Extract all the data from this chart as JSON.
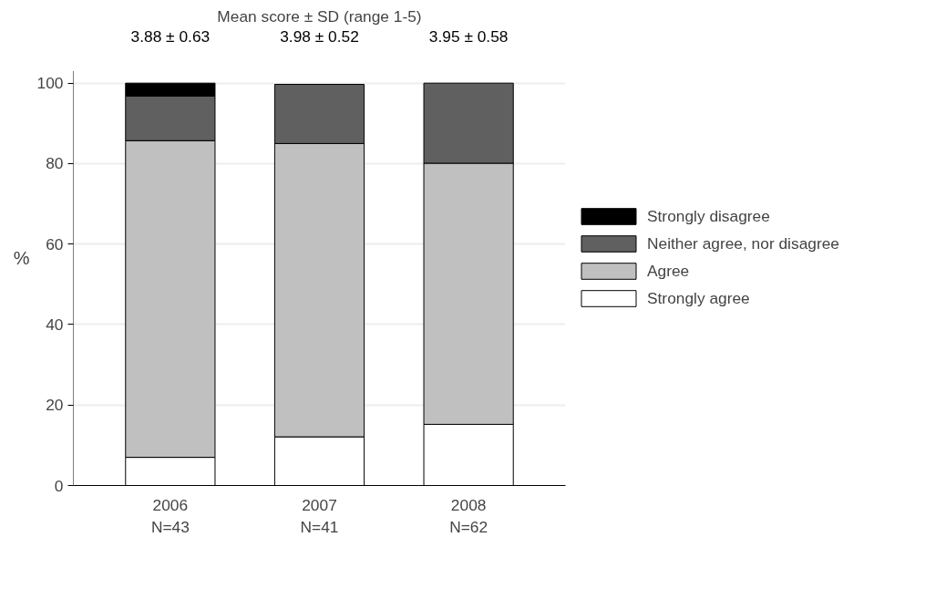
{
  "chart_data": {
    "type": "bar",
    "stacked": true,
    "title": "Mean score ± SD (range 1-5)",
    "ylabel": "%",
    "categories": [
      "2006\nN=43",
      "2007\nN=41",
      "2008\nN=62"
    ],
    "series": [
      {
        "name": "Strongly agree",
        "color": "#ffffff",
        "values": [
          7.0,
          12.1,
          15.2
        ]
      },
      {
        "name": "Agree",
        "color": "#c0c0c0",
        "values": [
          78.7,
          72.9,
          64.9
        ]
      },
      {
        "name": "Neither agree, nor disagree",
        "color": "#606060",
        "values": [
          11.1,
          14.7,
          19.9
        ]
      },
      {
        "name": "Strongly disagree",
        "color": "#000000",
        "values": [
          3.2,
          0,
          0
        ]
      }
    ],
    "annotations": [
      "3.88 ± 0.63",
      "3.98 ± 0.52",
      "3.95 ± 0.58"
    ],
    "ylim": [
      0,
      103
    ],
    "yticks": [
      0,
      20,
      40,
      60,
      80,
      100
    ],
    "grid": "y",
    "legend": "right"
  }
}
